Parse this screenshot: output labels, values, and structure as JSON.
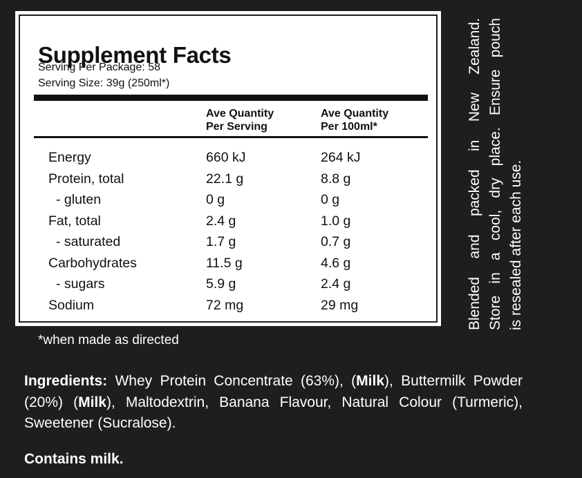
{
  "panel": {
    "title": "Supplement Facts",
    "servings_per_package": "Serving Per Package: 58",
    "serving_size": "Serving Size: 39g (250ml*)",
    "columns": [
      "Ave Quantity\nPer Serving",
      "Ave Quantity\nPer 100ml*"
    ],
    "rows": [
      [
        "Energy",
        "660 kJ",
        "264 kJ"
      ],
      [
        "Protein, total",
        "22.1 g",
        "8.8 g"
      ],
      [
        "- gluten",
        "0 g",
        "0 g"
      ],
      [
        "Fat, total",
        "2.4 g",
        "1.0 g"
      ],
      [
        "- saturated",
        "1.7 g",
        "0.7 g"
      ],
      [
        "Carbohydrates",
        "11.5 g",
        "4.6 g"
      ],
      [
        "- sugars",
        "5.9 g",
        "2.4 g"
      ],
      [
        "Sodium",
        "72 mg",
        "29 mg"
      ]
    ]
  },
  "footnote": "*when made as directed",
  "side_note": [
    "Blended and packed in New Zealand.",
    "Store in a cool, dry place. Ensure pouch",
    "is resealed after each use."
  ],
  "ingredients": [
    {
      "text": "Ingredients:",
      "bold": true
    },
    {
      "text": " Whey Protein Concentrate (63%), (",
      "bold": false
    },
    {
      "text": "Milk",
      "bold": true
    },
    {
      "text": "), Buttermilk Powder (20%) (",
      "bold": false
    },
    {
      "text": "Milk",
      "bold": true
    },
    {
      "text": "), Maltodextrin, Banana Flavour, Natural Colour (Turmeric), Sweetener (Sucralose).",
      "bold": false
    }
  ],
  "allergen": "Contains milk."
}
